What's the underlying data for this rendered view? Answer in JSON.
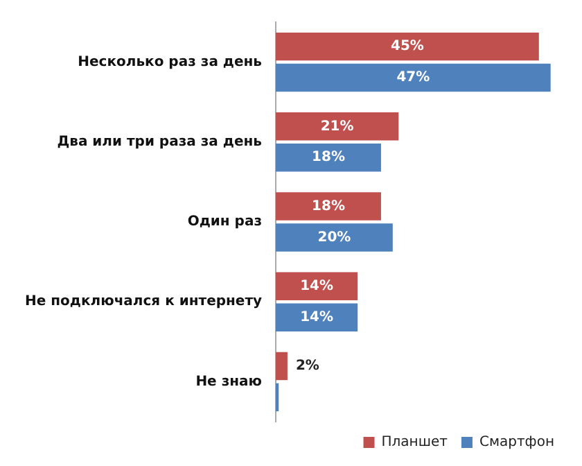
{
  "chart_data": {
    "type": "bar",
    "orientation": "horizontal",
    "categories": [
      "Несколько раз за день",
      "Два или три раза за день",
      "Один раз",
      "Не подключался к интернету",
      "Не знаю"
    ],
    "series": [
      {
        "name": "Планшет",
        "color": "#c0504d",
        "values": [
          45,
          21,
          18,
          14,
          2
        ],
        "value_labels": [
          "45%",
          "21%",
          "18%",
          "14%",
          "2%"
        ]
      },
      {
        "name": "Смартфон",
        "color": "#4f81bd",
        "values": [
          47,
          18,
          20,
          14,
          0.5
        ],
        "value_labels": [
          "47%",
          "18%",
          "20%",
          "14%",
          null
        ]
      }
    ],
    "tick_labels": "y",
    "grid": false,
    "legend": "bottom right"
  }
}
